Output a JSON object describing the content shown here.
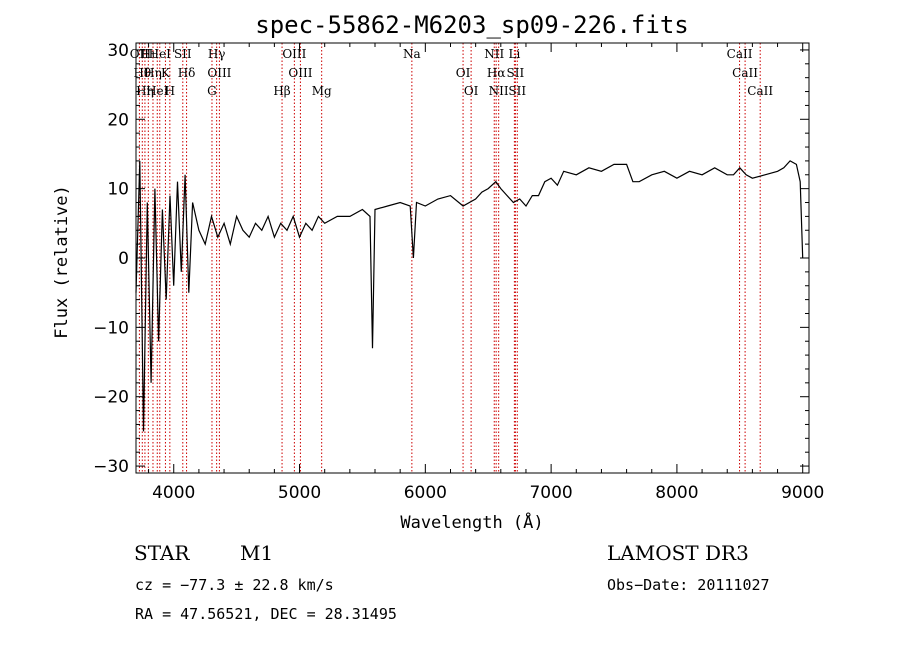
{
  "chart_data": {
    "type": "line",
    "title": "spec-55862-M6203_sp09-226.fits",
    "xlabel": "Wavelength (Å)",
    "ylabel": "Flux (relative)",
    "xlim": [
      3700,
      9050
    ],
    "ylim": [
      -31,
      31
    ],
    "x_ticks": [
      4000,
      5000,
      6000,
      7000,
      8000,
      9000
    ],
    "x_tick_labels": [
      "4000",
      "5000",
      "6000",
      "7000",
      "8000",
      "9000"
    ],
    "y_ticks": [
      -30,
      -20,
      -10,
      0,
      10,
      20,
      30
    ],
    "y_tick_labels": [
      "−30",
      "−20",
      "−10",
      "0",
      "10",
      "20",
      "30"
    ],
    "series": [
      {
        "name": "spectrum",
        "x": [
          3700,
          3730,
          3760,
          3790,
          3820,
          3850,
          3880,
          3910,
          3940,
          3970,
          4000,
          4030,
          4060,
          4090,
          4120,
          4150,
          4200,
          4250,
          4300,
          4350,
          4400,
          4450,
          4500,
          4550,
          4600,
          4650,
          4700,
          4750,
          4800,
          4850,
          4900,
          4950,
          5000,
          5050,
          5100,
          5150,
          5200,
          5300,
          5400,
          5500,
          5560,
          5580,
          5600,
          5700,
          5800,
          5880,
          5905,
          5930,
          6000,
          6100,
          6200,
          6300,
          6400,
          6450,
          6500,
          6560,
          6600,
          6650,
          6700,
          6750,
          6800,
          6850,
          6900,
          6950,
          7000,
          7050,
          7100,
          7200,
          7300,
          7400,
          7500,
          7600,
          7650,
          7700,
          7800,
          7900,
          8000,
          8100,
          8200,
          8300,
          8400,
          8450,
          8500,
          8550,
          8600,
          8700,
          8800,
          8850,
          8900,
          8950,
          8980,
          9000
        ],
        "values": [
          -5,
          14,
          -25,
          8,
          -18,
          10,
          -12,
          7,
          -6,
          9,
          -4,
          11,
          -2,
          12,
          -5,
          8,
          4,
          2,
          6,
          3,
          5,
          2,
          6,
          4,
          3,
          5,
          4,
          6,
          3,
          5,
          4,
          6,
          3,
          5,
          4,
          6,
          5,
          6,
          6,
          7,
          6,
          -13,
          7,
          7.5,
          8,
          7.5,
          0,
          8,
          7.5,
          8.5,
          9,
          7.5,
          8.5,
          9.5,
          10,
          11,
          10,
          9,
          8,
          8.5,
          7.5,
          9,
          9,
          11,
          11.5,
          10.5,
          12.5,
          12,
          13,
          12.5,
          13.5,
          13.5,
          11,
          11,
          12,
          12.5,
          11.5,
          12.5,
          12,
          13,
          12,
          12,
          13,
          12,
          11.5,
          12,
          12.5,
          13,
          14,
          13.5,
          11,
          0
        ]
      }
    ],
    "line_markers": [
      {
        "wavelength": 3727,
        "label": "OII"
      },
      {
        "wavelength": 3750,
        "label": "Hθ"
      },
      {
        "wavelength": 3771,
        "label": "Hη"
      },
      {
        "wavelength": 3798,
        "label": "Hι"
      },
      {
        "wavelength": 3835,
        "label": "Hη"
      },
      {
        "wavelength": 3869,
        "label": "HeI"
      },
      {
        "wavelength": 3889,
        "label": "HeI"
      },
      {
        "wavelength": 3934,
        "label": "K"
      },
      {
        "wavelength": 3969,
        "label": "H"
      },
      {
        "wavelength": 4072,
        "label": "SII"
      },
      {
        "wavelength": 4102,
        "label": "Hδ"
      },
      {
        "wavelength": 4304,
        "label": "G"
      },
      {
        "wavelength": 4341,
        "label": "Hγ"
      },
      {
        "wavelength": 4363,
        "label": "OIII"
      },
      {
        "wavelength": 4861,
        "label": "Hβ"
      },
      {
        "wavelength": 4959,
        "label": "OIII"
      },
      {
        "wavelength": 5007,
        "label": "OIII"
      },
      {
        "wavelength": 5176,
        "label": "Mg"
      },
      {
        "wavelength": 5893,
        "label": "Na"
      },
      {
        "wavelength": 6300,
        "label": "OI"
      },
      {
        "wavelength": 6364,
        "label": "OI"
      },
      {
        "wavelength": 6548,
        "label": "NII"
      },
      {
        "wavelength": 6563,
        "label": "Hα"
      },
      {
        "wavelength": 6583,
        "label": "NII"
      },
      {
        "wavelength": 6708,
        "label": "Li"
      },
      {
        "wavelength": 6716,
        "label": "SII"
      },
      {
        "wavelength": 6731,
        "label": "SII"
      },
      {
        "wavelength": 8498,
        "label": "CaII"
      },
      {
        "wavelength": 8542,
        "label": "CaII"
      },
      {
        "wavelength": 8662,
        "label": "CaII"
      }
    ]
  },
  "info": {
    "object_type": "STAR",
    "subclass": "M1",
    "survey": "LAMOST DR3",
    "cz": "cz = −77.3 ± 22.8 km/s",
    "obs_date": "Obs−Date: 20111027",
    "coords": "RA =  47.56521, DEC =  28.31495"
  },
  "colors": {
    "line_marker": "#cc0000",
    "spectrum": "#000000",
    "axes": "#000000"
  }
}
